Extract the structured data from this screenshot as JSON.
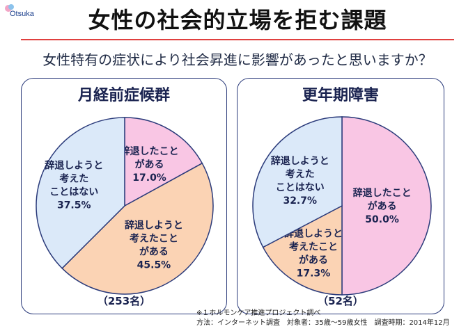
{
  "brand": "Otsuka",
  "title": "女性の社会的立場を拒む課題",
  "question": "女性特有の症状により社会昇進に影響があったと思いますか？",
  "colors": {
    "pink": "#f9c6e4",
    "peach": "#fbd3b4",
    "blue": "#dbe9f9",
    "border": "#2a3a7a",
    "accent": "#e0403f"
  },
  "footnote": {
    "line1": "※１ホルモンケア推進プロジェクト調べ",
    "line2": "方法：インターネット調査　対象者：35歳〜59歳女性　調査時期：2014年12月"
  },
  "chart_data": [
    {
      "type": "pie",
      "title": "月経前症候群",
      "sample": "（253名）",
      "slices": [
        {
          "lines": [
            "辞退したこと",
            "がある"
          ],
          "value": 17.0,
          "display": "17.0%",
          "color": "#f9c6e4"
        },
        {
          "lines": [
            "辞退しようと",
            "考えたこと",
            "がある"
          ],
          "value": 45.5,
          "display": "45.5%",
          "color": "#fbd3b4"
        },
        {
          "lines": [
            "辞退しようと",
            "考えた",
            "ことはない"
          ],
          "value": 37.5,
          "display": "37.5%",
          "color": "#dbe9f9"
        }
      ]
    },
    {
      "type": "pie",
      "title": "更年期障害",
      "sample": "（52名）",
      "slices": [
        {
          "lines": [
            "辞退したこと",
            "がある"
          ],
          "value": 50.0,
          "display": "50.0%",
          "color": "#f9c6e4"
        },
        {
          "lines": [
            "辞退しようと",
            "考えたこと",
            "がある"
          ],
          "value": 17.3,
          "display": "17.3%",
          "color": "#fbd3b4"
        },
        {
          "lines": [
            "辞退しようと",
            "考えた",
            "ことはない"
          ],
          "value": 32.7,
          "display": "32.7%",
          "color": "#dbe9f9"
        }
      ]
    }
  ]
}
